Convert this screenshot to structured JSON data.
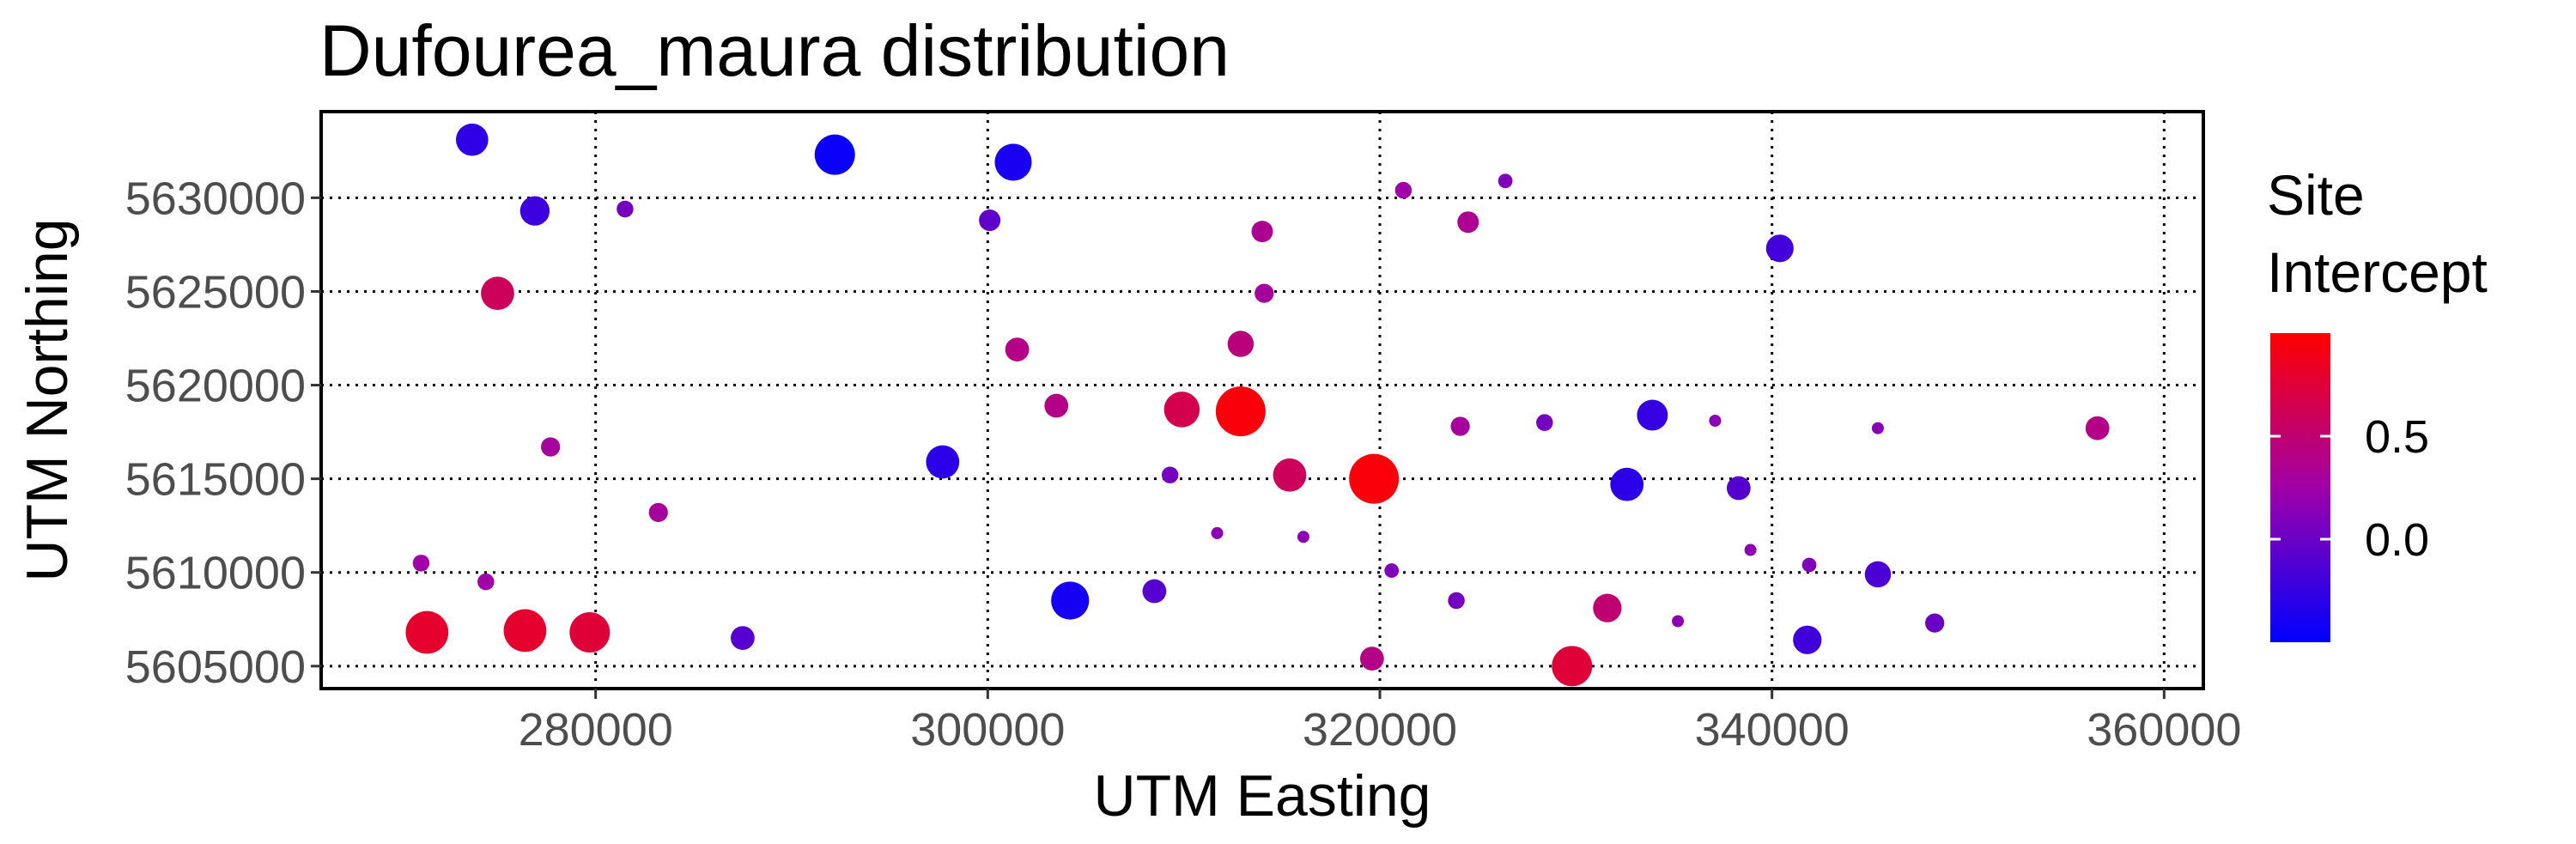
{
  "chart_data": {
    "type": "scatter",
    "title": "Dufourea_maura distribution",
    "xlabel": "UTM Easting",
    "ylabel": "UTM Northing",
    "xlim": [
      266000,
      362000
    ],
    "ylim": [
      5603800,
      5634600
    ],
    "x_ticks": [
      280000,
      300000,
      320000,
      340000,
      360000
    ],
    "y_ticks": [
      5605000,
      5610000,
      5615000,
      5620000,
      5625000,
      5630000
    ],
    "x_tick_labels": [
      "280000",
      "300000",
      "320000",
      "340000",
      "360000"
    ],
    "y_tick_labels": [
      "5605000",
      "5610000",
      "5615000",
      "5620000",
      "5625000",
      "5630000"
    ],
    "grid": true,
    "legend": {
      "title_lines": [
        "Site",
        "Intercept"
      ],
      "position": "right",
      "colorbar_range": [
        -0.5,
        1.0
      ],
      "ticks": [
        0.5,
        0.0
      ],
      "tick_labels": [
        "0.5",
        "0.0"
      ],
      "color_low": "#0000ff",
      "color_high": "#ff0000"
    },
    "points": [
      {
        "x": 273700,
        "y": 5633100,
        "value": -0.28
      },
      {
        "x": 292200,
        "y": 5632300,
        "value": -0.45
      },
      {
        "x": 301300,
        "y": 5631900,
        "value": -0.38
      },
      {
        "x": 276900,
        "y": 5629300,
        "value": -0.22
      },
      {
        "x": 281500,
        "y": 5629400,
        "value": 0.05
      },
      {
        "x": 300100,
        "y": 5628800,
        "value": -0.05
      },
      {
        "x": 321200,
        "y": 5630400,
        "value": 0.25
      },
      {
        "x": 326400,
        "y": 5630900,
        "value": 0.1
      },
      {
        "x": 324500,
        "y": 5628700,
        "value": 0.35
      },
      {
        "x": 314000,
        "y": 5628200,
        "value": 0.35
      },
      {
        "x": 340400,
        "y": 5627300,
        "value": -0.18
      },
      {
        "x": 275000,
        "y": 5624900,
        "value": 0.6
      },
      {
        "x": 314100,
        "y": 5624900,
        "value": 0.3
      },
      {
        "x": 301500,
        "y": 5621900,
        "value": 0.4
      },
      {
        "x": 312900,
        "y": 5622200,
        "value": 0.45
      },
      {
        "x": 303500,
        "y": 5618900,
        "value": 0.4
      },
      {
        "x": 309900,
        "y": 5618700,
        "value": 0.65
      },
      {
        "x": 312900,
        "y": 5618600,
        "value": 0.95
      },
      {
        "x": 277700,
        "y": 5616700,
        "value": 0.3
      },
      {
        "x": 297700,
        "y": 5615900,
        "value": -0.3
      },
      {
        "x": 315400,
        "y": 5615200,
        "value": 0.6
      },
      {
        "x": 319700,
        "y": 5615000,
        "value": 0.95
      },
      {
        "x": 309300,
        "y": 5615200,
        "value": 0.05
      },
      {
        "x": 324100,
        "y": 5617800,
        "value": 0.3
      },
      {
        "x": 328400,
        "y": 5618000,
        "value": 0.05
      },
      {
        "x": 333900,
        "y": 5618400,
        "value": -0.25
      },
      {
        "x": 337100,
        "y": 5618100,
        "value": 0.15
      },
      {
        "x": 345400,
        "y": 5617700,
        "value": 0.15
      },
      {
        "x": 356600,
        "y": 5617700,
        "value": 0.4
      },
      {
        "x": 332600,
        "y": 5614700,
        "value": -0.3
      },
      {
        "x": 338300,
        "y": 5614500,
        "value": -0.1
      },
      {
        "x": 283200,
        "y": 5613200,
        "value": 0.3
      },
      {
        "x": 311700,
        "y": 5612100,
        "value": 0.15
      },
      {
        "x": 316100,
        "y": 5611900,
        "value": 0.15
      },
      {
        "x": 338900,
        "y": 5611200,
        "value": 0.15
      },
      {
        "x": 271100,
        "y": 5610500,
        "value": 0.25
      },
      {
        "x": 274400,
        "y": 5609500,
        "value": 0.25
      },
      {
        "x": 320600,
        "y": 5610100,
        "value": 0.1
      },
      {
        "x": 341900,
        "y": 5610400,
        "value": 0.1
      },
      {
        "x": 345400,
        "y": 5609900,
        "value": -0.15
      },
      {
        "x": 304200,
        "y": 5608500,
        "value": -0.4
      },
      {
        "x": 308500,
        "y": 5609000,
        "value": -0.1
      },
      {
        "x": 323900,
        "y": 5608500,
        "value": 0.05
      },
      {
        "x": 331600,
        "y": 5608100,
        "value": 0.5
      },
      {
        "x": 335200,
        "y": 5607400,
        "value": 0.15
      },
      {
        "x": 348300,
        "y": 5607300,
        "value": 0.0
      },
      {
        "x": 271400,
        "y": 5606800,
        "value": 0.8
      },
      {
        "x": 276400,
        "y": 5606900,
        "value": 0.8
      },
      {
        "x": 279700,
        "y": 5606800,
        "value": 0.75
      },
      {
        "x": 287500,
        "y": 5606500,
        "value": -0.1
      },
      {
        "x": 341800,
        "y": 5606400,
        "value": -0.2
      },
      {
        "x": 319600,
        "y": 5605400,
        "value": 0.4
      },
      {
        "x": 329800,
        "y": 5605000,
        "value": 0.75
      }
    ]
  }
}
